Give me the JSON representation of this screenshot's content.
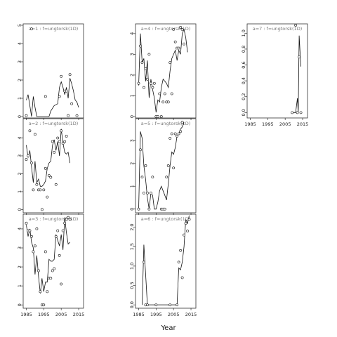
{
  "chart_data": {
    "type": "line",
    "xlabel": "Year",
    "panels": [
      {
        "label": "a=1 : f=ungtorsk(1D)",
        "ylim": [
          0,
          5
        ],
        "yticks": [
          0,
          1,
          2,
          3,
          4,
          5
        ],
        "xlim": [
          1984,
          2017
        ],
        "xticks": [
          1985,
          1995,
          2005,
          2015
        ],
        "show_xtick_labels": false,
        "points": [
          [
            1985,
            0.05
          ],
          [
            1988,
            4.8
          ],
          [
            1996,
            1.1
          ],
          [
            2004,
            1.1
          ],
          [
            2005,
            2.2
          ],
          [
            2007,
            1.4
          ],
          [
            2008,
            1.4
          ],
          [
            2009,
            0.05
          ],
          [
            2010,
            2.3
          ],
          [
            2011,
            0.7
          ],
          [
            2014,
            0.05
          ]
        ],
        "line": [
          [
            1985,
            0.9
          ],
          [
            1986,
            1.2
          ],
          [
            1987,
            0.6
          ],
          [
            1988,
            0.0
          ],
          [
            1989,
            1.1
          ],
          [
            1990,
            0.5
          ],
          [
            1991,
            0.0
          ],
          [
            1998,
            0.0
          ],
          [
            1999,
            0.3
          ],
          [
            2001,
            0.6
          ],
          [
            2003,
            0.7
          ],
          [
            2004,
            1.6
          ],
          [
            2005,
            1.9
          ],
          [
            2006,
            1.6
          ],
          [
            2007,
            1.2
          ],
          [
            2008,
            1.6
          ],
          [
            2009,
            1.0
          ],
          [
            2010,
            2.1
          ],
          [
            2011,
            1.8
          ],
          [
            2012,
            1.4
          ],
          [
            2013,
            0.9
          ],
          [
            2014,
            0.8
          ],
          [
            2015,
            0.5
          ]
        ]
      },
      {
        "label": "a=4 : f=ungtorsk(1D)",
        "ylim": [
          0,
          4.4
        ],
        "yticks": [
          0,
          1,
          2,
          3,
          4
        ],
        "xlim": [
          1984,
          2017
        ],
        "xticks": [
          1985,
          1995,
          2005,
          2015
        ],
        "show_xtick_labels": false,
        "points": [
          [
            1985,
            1.6
          ],
          [
            1986,
            3.4
          ],
          [
            1987,
            2.6
          ],
          [
            1988,
            1.4
          ],
          [
            1989,
            2.3
          ],
          [
            1990,
            1.8
          ],
          [
            1991,
            3.0
          ],
          [
            1992,
            1.6
          ],
          [
            1993,
            1.4
          ],
          [
            1994,
            1.6
          ],
          [
            1995,
            0.0
          ],
          [
            1996,
            0.0
          ],
          [
            1997,
            1.1
          ],
          [
            1998,
            0.0
          ],
          [
            1999,
            0.7
          ],
          [
            2000,
            1.1
          ],
          [
            2001,
            0.7
          ],
          [
            2002,
            0.7
          ],
          [
            2003,
            2.6
          ],
          [
            2004,
            1.1
          ],
          [
            2005,
            4.2
          ],
          [
            2006,
            3.6
          ],
          [
            2007,
            3.3
          ],
          [
            2008,
            3.3
          ],
          [
            2009,
            4.3
          ],
          [
            2010,
            4.2
          ],
          [
            2011,
            3.5
          ]
        ],
        "line": [
          [
            1985,
            1.5
          ],
          [
            1986,
            4.0
          ],
          [
            1987,
            2.6
          ],
          [
            1988,
            2.8
          ],
          [
            1989,
            1.7
          ],
          [
            1990,
            2.7
          ],
          [
            1991,
            0.9
          ],
          [
            1992,
            1.8
          ],
          [
            1993,
            1.3
          ],
          [
            1994,
            0.9
          ],
          [
            1995,
            0.2
          ],
          [
            1996,
            0.8
          ],
          [
            1997,
            0.7
          ],
          [
            1998,
            1.4
          ],
          [
            1999,
            1.8
          ],
          [
            2000,
            1.7
          ],
          [
            2001,
            1.6
          ],
          [
            2002,
            1.4
          ],
          [
            2003,
            2.2
          ],
          [
            2004,
            2.8
          ],
          [
            2005,
            3.0
          ],
          [
            2006,
            3.2
          ],
          [
            2007,
            2.7
          ],
          [
            2008,
            3.2
          ],
          [
            2009,
            3.0
          ],
          [
            2010,
            4.0
          ],
          [
            2011,
            4.2
          ],
          [
            2012,
            3.8
          ],
          [
            2013,
            3.1
          ]
        ]
      },
      {
        "label": "a=7 : f=ungtorsk(1D)",
        "ylim": [
          -0.05,
          1.1
        ],
        "yticks": [
          0.0,
          0.2,
          0.4,
          0.6,
          0.8,
          1.0
        ],
        "xlim": [
          1984,
          2017
        ],
        "xticks": [
          1985,
          1995,
          2005,
          2015
        ],
        "show_xtick_labels": true,
        "points": [
          [
            2009,
            0.0
          ],
          [
            2011,
            1.1
          ],
          [
            2012,
            0.0
          ],
          [
            2013,
            0.7
          ],
          [
            2014,
            0.0
          ]
        ],
        "line": [
          [
            2009,
            0.0
          ],
          [
            2011,
            0.0
          ],
          [
            2012,
            0.18
          ],
          [
            2012.5,
            0.0
          ],
          [
            2013,
            0.97
          ],
          [
            2014,
            0.58
          ]
        ]
      },
      {
        "label": "a=2 : f=ungtorsk(1D)",
        "ylim": [
          -0.1,
          5
        ],
        "yticks": [
          0,
          1,
          2,
          3,
          4
        ],
        "xlim": [
          1984,
          2017
        ],
        "xticks": [
          1985,
          1995,
          2005,
          2015
        ],
        "show_xtick_labels": false,
        "points": [
          [
            1985,
            2.8
          ],
          [
            1986,
            3.0
          ],
          [
            1987,
            4.4
          ],
          [
            1988,
            2.6
          ],
          [
            1989,
            1.1
          ],
          [
            1990,
            4.2
          ],
          [
            1991,
            1.4
          ],
          [
            1992,
            1.1
          ],
          [
            1993,
            1.1
          ],
          [
            1994,
            0.0
          ],
          [
            1995,
            1.1
          ],
          [
            1996,
            2.3
          ],
          [
            1997,
            0.7
          ],
          [
            1998,
            1.9
          ],
          [
            1999,
            1.8
          ],
          [
            2000,
            3.8
          ],
          [
            2001,
            3.2
          ],
          [
            2002,
            1.4
          ],
          [
            2003,
            4.0
          ],
          [
            2004,
            3.8
          ],
          [
            2005,
            4.4
          ],
          [
            2006,
            3.7
          ],
          [
            2007,
            3.8
          ],
          [
            2008,
            4.1
          ]
        ],
        "line": [
          [
            1985,
            3.6
          ],
          [
            1986,
            2.9
          ],
          [
            1987,
            3.3
          ],
          [
            1988,
            2.4
          ],
          [
            1989,
            1.5
          ],
          [
            1990,
            2.7
          ],
          [
            1991,
            1.5
          ],
          [
            1992,
            1.7
          ],
          [
            1993,
            1.3
          ],
          [
            1994,
            1.3
          ],
          [
            1995,
            1.4
          ],
          [
            1996,
            1.6
          ],
          [
            1997,
            2.3
          ],
          [
            1998,
            2.6
          ],
          [
            1999,
            2.7
          ],
          [
            2000,
            3.6
          ],
          [
            2001,
            3.9
          ],
          [
            2002,
            3.3
          ],
          [
            2003,
            3.8
          ],
          [
            2004,
            3.0
          ],
          [
            2005,
            4.5
          ],
          [
            2006,
            3.7
          ],
          [
            2007,
            3.2
          ],
          [
            2008,
            3.1
          ],
          [
            2009,
            3.2
          ],
          [
            2010,
            2.6
          ]
        ]
      },
      {
        "label": "a=5 : f=ungtorsk(1D)",
        "ylim": [
          -0.1,
          3.9
        ],
        "yticks": [
          0,
          1,
          2,
          3
        ],
        "xlim": [
          1984,
          2017
        ],
        "xticks": [
          1985,
          1995,
          2005,
          2015
        ],
        "show_xtick_labels": false,
        "points": [
          [
            1985,
            0.0
          ],
          [
            1986,
            2.6
          ],
          [
            1987,
            1.4
          ],
          [
            1988,
            0.7
          ],
          [
            1989,
            1.9
          ],
          [
            1990,
            0.7
          ],
          [
            1991,
            0.0
          ],
          [
            1992,
            0.7
          ],
          [
            1993,
            1.4
          ],
          [
            1998,
            0.0
          ],
          [
            1999,
            0.0
          ],
          [
            2000,
            0.0
          ],
          [
            2001,
            1.4
          ],
          [
            2002,
            1.9
          ],
          [
            2003,
            3.1
          ],
          [
            2004,
            3.3
          ],
          [
            2005,
            1.8
          ],
          [
            2006,
            3.3
          ],
          [
            2007,
            3.2
          ],
          [
            2008,
            3.3
          ],
          [
            2009,
            3.4
          ],
          [
            2010,
            3.8
          ]
        ],
        "line": [
          [
            1985,
            0.0
          ],
          [
            1986,
            3.4
          ],
          [
            1987,
            3.1
          ],
          [
            1988,
            1.9
          ],
          [
            1989,
            1.3
          ],
          [
            1990,
            0.5
          ],
          [
            1991,
            0.0
          ],
          [
            1992,
            0.7
          ],
          [
            1993,
            0.6
          ],
          [
            1994,
            0.0
          ],
          [
            1995,
            0.0
          ],
          [
            1996,
            0.3
          ],
          [
            1997,
            0.8
          ],
          [
            1998,
            1.0
          ],
          [
            1999,
            0.8
          ],
          [
            2000,
            0.6
          ],
          [
            2001,
            0.4
          ],
          [
            2002,
            1.1
          ],
          [
            2003,
            1.9
          ],
          [
            2004,
            2.5
          ],
          [
            2005,
            2.4
          ],
          [
            2006,
            2.7
          ],
          [
            2007,
            3.2
          ],
          [
            2008,
            3.3
          ],
          [
            2009,
            3.5
          ],
          [
            2010,
            3.6
          ],
          [
            2011,
            3.8
          ]
        ]
      },
      {
        "label": "a=3 : f=ungtorsk(1D)",
        "ylim": [
          -0.1,
          4.7
        ],
        "yticks": [
          0,
          1,
          2,
          3,
          4
        ],
        "xlim": [
          1984,
          2017
        ],
        "xticks": [
          1985,
          1995,
          2005,
          2015
        ],
        "show_xtick_labels": true,
        "points": [
          [
            1985,
            4.3
          ],
          [
            1986,
            3.9
          ],
          [
            1987,
            3.9
          ],
          [
            1988,
            3.6
          ],
          [
            1989,
            2.8
          ],
          [
            1990,
            3.1
          ],
          [
            1991,
            4.0
          ],
          [
            1992,
            1.8
          ],
          [
            1993,
            0.7
          ],
          [
            1994,
            0.0
          ],
          [
            1995,
            0.0
          ],
          [
            1996,
            2.8
          ],
          [
            1997,
            0.7
          ],
          [
            1998,
            1.4
          ],
          [
            1999,
            1.4
          ],
          [
            2000,
            1.8
          ],
          [
            2001,
            1.9
          ],
          [
            2002,
            3.6
          ],
          [
            2003,
            3.9
          ],
          [
            2004,
            2.6
          ],
          [
            2005,
            1.1
          ],
          [
            2006,
            3.9
          ],
          [
            2007,
            4.3
          ],
          [
            2008,
            4.5
          ],
          [
            2009,
            4.6
          ],
          [
            2010,
            4.5
          ]
        ],
        "line": [
          [
            1985,
            4.2
          ],
          [
            1986,
            3.6
          ],
          [
            1987,
            4.0
          ],
          [
            1988,
            3.3
          ],
          [
            1989,
            3.0
          ],
          [
            1990,
            1.6
          ],
          [
            1991,
            2.6
          ],
          [
            1992,
            1.5
          ],
          [
            1993,
            0.6
          ],
          [
            1994,
            1.4
          ],
          [
            1995,
            0.7
          ],
          [
            1996,
            1.2
          ],
          [
            1997,
            1.2
          ],
          [
            1998,
            2.4
          ],
          [
            1999,
            2.3
          ],
          [
            2000,
            2.3
          ],
          [
            2001,
            2.4
          ],
          [
            2002,
            3.7
          ],
          [
            2003,
            3.4
          ],
          [
            2004,
            3.1
          ],
          [
            2005,
            3.7
          ],
          [
            2006,
            2.9
          ],
          [
            2007,
            4.6
          ],
          [
            2008,
            3.8
          ],
          [
            2009,
            3.2
          ],
          [
            2010,
            3.3
          ]
        ]
      },
      {
        "label": "a=6 : f=ungtorsk(1D)",
        "ylim": [
          -0.05,
          2.3
        ],
        "yticks": [
          0.0,
          0.5,
          1.0,
          1.5,
          2.0
        ],
        "xlim": [
          1984,
          2017
        ],
        "xticks": [
          1985,
          1995,
          2005,
          2015
        ],
        "show_xtick_labels": true,
        "points": [
          [
            1988,
            1.1
          ],
          [
            1989,
            0.0
          ],
          [
            1990,
            0.0
          ],
          [
            1995,
            0.0
          ],
          [
            2003,
            0.0
          ],
          [
            2007,
            0.0
          ],
          [
            2008,
            1.1
          ],
          [
            2009,
            1.4
          ],
          [
            2010,
            0.7
          ],
          [
            2011,
            1.8
          ],
          [
            2012,
            2.1
          ],
          [
            2013,
            1.9
          ],
          [
            2014,
            2.2
          ]
        ],
        "line": [
          [
            1987,
            0.0
          ],
          [
            1988,
            1.55
          ],
          [
            1989,
            0.8
          ],
          [
            1990,
            0.0
          ],
          [
            2007,
            0.0
          ],
          [
            2008,
            0.95
          ],
          [
            2009,
            0.9
          ],
          [
            2010,
            1.1
          ],
          [
            2011,
            1.5
          ],
          [
            2012,
            2.2
          ],
          [
            2013,
            2.1
          ],
          [
            2014,
            2.3
          ]
        ]
      }
    ]
  }
}
